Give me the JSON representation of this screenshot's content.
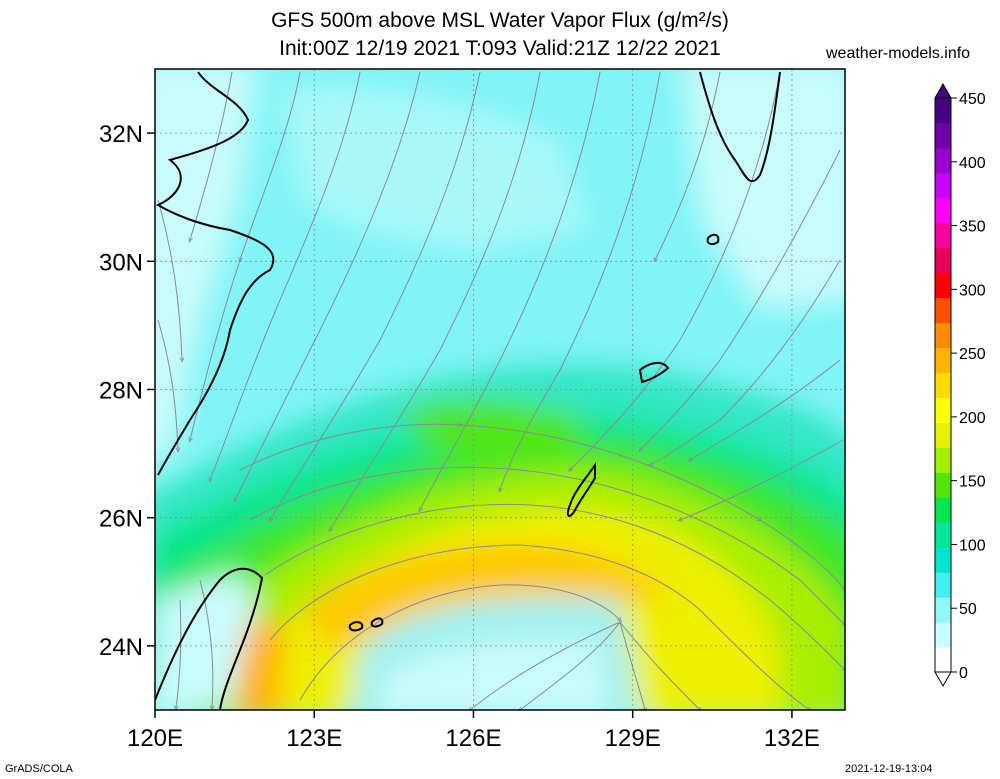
{
  "title": {
    "line1": "GFS 500m above MSL Water Vapor Flux (g/m²/s)",
    "line2": "Init:00Z 12/19 2021 T:093 Valid:21Z 12/22 2021"
  },
  "watermark": "weather-models.info",
  "map": {
    "lon_range": [
      120,
      133
    ],
    "lat_range": [
      23,
      33
    ],
    "lat_ticks": [
      {
        "value": 24,
        "label": "24N"
      },
      {
        "value": 26,
        "label": "26N"
      },
      {
        "value": 28,
        "label": "28N"
      },
      {
        "value": 30,
        "label": "30N"
      },
      {
        "value": 32,
        "label": "32N"
      }
    ],
    "lon_ticks": [
      {
        "value": 120,
        "label": "120E"
      },
      {
        "value": 123,
        "label": "123E"
      },
      {
        "value": 126,
        "label": "126E"
      },
      {
        "value": 129,
        "label": "129E"
      },
      {
        "value": 132,
        "label": "132E"
      }
    ],
    "gridlines": "dotted"
  },
  "colorbar": {
    "levels": [
      0,
      50,
      100,
      150,
      200,
      250,
      300,
      350,
      400,
      450
    ],
    "labels": [
      "0",
      "50",
      "100",
      "150",
      "200",
      "250",
      "300",
      "350",
      "400",
      "450"
    ],
    "colors": [
      "#ffffff",
      "#c8ffff",
      "#90f8f8",
      "#40f0f0",
      "#00e6d0",
      "#00e69a",
      "#00e650",
      "#50e600",
      "#a0f000",
      "#e6f000",
      "#ffff00",
      "#ffdc00",
      "#ffb400",
      "#ff8c00",
      "#ff5000",
      "#ff0000",
      "#e6005a",
      "#ff00a0",
      "#ff00ff",
      "#c800ff",
      "#9b00d2",
      "#6e00aa",
      "#460082"
    ]
  },
  "footer": {
    "left": "GrADS/COLA",
    "right": "2021-12-19-13:04"
  }
}
